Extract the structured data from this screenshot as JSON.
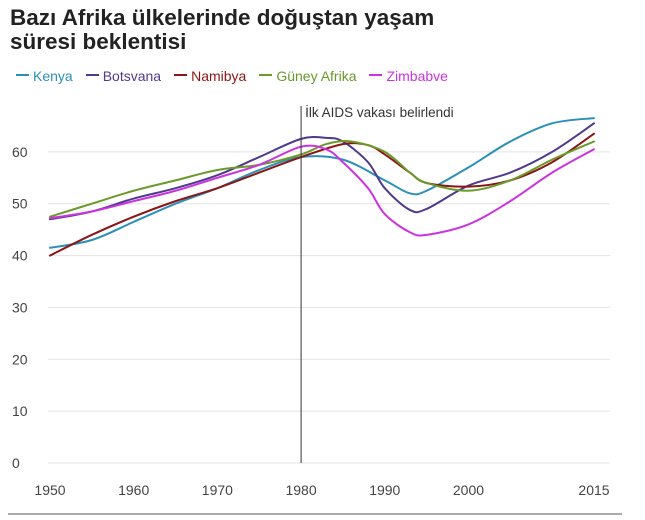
{
  "title_line1": "Bazı Afrika ülkelerinde doğuştan yaşam",
  "title_line2": "süresi beklentisi",
  "chart_data": {
    "type": "line",
    "title": "Bazı Afrika ülkelerinde doğuştan yaşam süresi beklentisi",
    "xlabel": "",
    "ylabel": "",
    "xlim": [
      1950,
      2015
    ],
    "ylim": [
      0,
      70
    ],
    "x_ticks": [
      1950,
      1960,
      1970,
      1980,
      1990,
      2000,
      2015
    ],
    "x_tick_labels": [
      "1950",
      "1960",
      "1970",
      "1980",
      "1990",
      "2000",
      "2015"
    ],
    "y_ticks": [
      0,
      10,
      20,
      30,
      40,
      50,
      60
    ],
    "grid": "horizontal",
    "legend": "top",
    "annotation": {
      "x": 1980,
      "text": "İlk AIDS vakası belirlendi"
    },
    "series": [
      {
        "name": "Kenya",
        "color": "#2a90b8",
        "x": [
          1950,
          1955,
          1960,
          1965,
          1970,
          1975,
          1980,
          1985,
          1990,
          1993,
          1995,
          2000,
          2005,
          2010,
          2015
        ],
        "y": [
          41.5,
          43,
          46.5,
          50,
          53,
          56.5,
          59,
          58.5,
          54.5,
          52,
          52.5,
          57,
          62,
          65.5,
          66.5
        ]
      },
      {
        "name": "Botsvana",
        "color": "#4f3a8c",
        "x": [
          1950,
          1955,
          1960,
          1965,
          1970,
          1975,
          1980,
          1983,
          1985,
          1988,
          1990,
          1993,
          1995,
          2000,
          2005,
          2010,
          2015
        ],
        "y": [
          47,
          48.5,
          51,
          53,
          55.5,
          59,
          62.5,
          62.7,
          62,
          58,
          53,
          48.8,
          49,
          53.5,
          56,
          60,
          65.5
        ]
      },
      {
        "name": "Namibya",
        "color": "#8c1515",
        "x": [
          1950,
          1955,
          1960,
          1965,
          1970,
          1975,
          1980,
          1985,
          1988,
          1990,
          1993,
          1995,
          2000,
          2005,
          2010,
          2015
        ],
        "y": [
          40,
          44,
          47.5,
          50.5,
          53,
          56,
          59,
          61.5,
          61.3,
          59.5,
          56,
          54,
          53.3,
          54.5,
          58,
          63.5
        ]
      },
      {
        "name": "Güney Afrika",
        "color": "#6a9a2a",
        "x": [
          1950,
          1955,
          1960,
          1965,
          1970,
          1975,
          1980,
          1983,
          1986,
          1990,
          1993,
          1995,
          2000,
          2005,
          2010,
          2015
        ],
        "y": [
          47.5,
          50,
          52.5,
          54.5,
          56.5,
          57.5,
          59.5,
          61.5,
          62,
          60,
          56,
          54,
          52.5,
          54.5,
          58.5,
          62
        ]
      },
      {
        "name": "Zimbabve",
        "color": "#cc33e0",
        "x": [
          1950,
          1955,
          1960,
          1965,
          1970,
          1975,
          1980,
          1983,
          1985,
          1988,
          1990,
          1993,
          1995,
          2000,
          2005,
          2010,
          2015
        ],
        "y": [
          47.2,
          48.5,
          50.5,
          52.5,
          55,
          57.5,
          61,
          60.5,
          58,
          53,
          48,
          44.5,
          44,
          46,
          50.5,
          56,
          60.5
        ]
      }
    ]
  }
}
